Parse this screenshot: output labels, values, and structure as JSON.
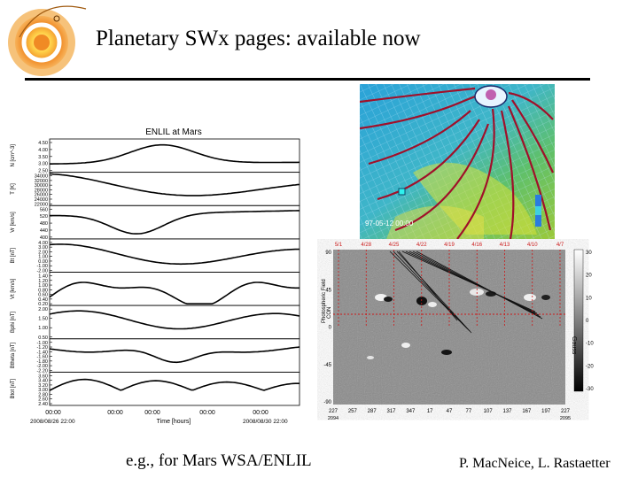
{
  "slide": {
    "title": "Planetary SWx pages: available now",
    "caption_left": "e.g., for Mars   WSA/ENLIL",
    "caption_right": "P. MacNeice, L. Rastaetter"
  },
  "colors": {
    "sun_orange": "#f08a24",
    "sun_yellow": "#ffd24a",
    "field_line": "#a0102a",
    "grid_red": "#cc1a1a"
  },
  "enlil_plot": {
    "title": "ENLIL at Mars",
    "xlabel": "Time [hours]",
    "x_ticks": [
      "00:00",
      "00:00",
      "00:00",
      "00:00",
      "00:00"
    ],
    "x_dates": [
      "2008/08/26 22:00",
      "2008/08/30 22:00"
    ],
    "panels": [
      {
        "ylabel": "N [cm^-3]",
        "ticks": [
          "4.50",
          "4.00",
          "3.50",
          "3.00",
          "2.50"
        ]
      },
      {
        "ylabel": "T [K]",
        "ticks": [
          "34000",
          "32000",
          "30000",
          "28000",
          "26000",
          "24000",
          "22000"
        ]
      },
      {
        "ylabel": "Vr [km/s]",
        "ticks": [
          "560",
          "520",
          "480",
          "440",
          "400"
        ]
      },
      {
        "ylabel": "Bt [nT]",
        "ticks": [
          "4.00",
          "3.00",
          "2.00",
          "1.00",
          "0.00",
          "-1.00",
          "-2.00"
        ]
      },
      {
        "ylabel": "Vt [km/s]",
        "ticks": [
          "1.40",
          "1.20",
          "1.00",
          "0.80",
          "0.60",
          "0.40",
          "0.20"
        ]
      },
      {
        "ylabel": "Bphi [nT]",
        "ticks": [
          "2.00",
          "1.50",
          "1.00",
          "0.50"
        ]
      },
      {
        "ylabel": "Btheta [nT]",
        "ticks": [
          "-1.00",
          "-1.20",
          "-1.40",
          "-1.60",
          "-1.80",
          "-2.00",
          "-2.20"
        ]
      },
      {
        "ylabel": "Btot [nT]",
        "ticks": [
          "3.60",
          "3.40",
          "3.20",
          "3.00",
          "2.80",
          "2.60",
          "2.40"
        ]
      }
    ]
  },
  "sim_image": {
    "timestamp": "97-05-12 00:00"
  },
  "synoptic_map": {
    "top_dates": [
      "5/1",
      "4/28",
      "4/25",
      "4/22",
      "4/19",
      "4/16",
      "4/13",
      "4/10",
      "4/7"
    ],
    "bottom_ticks": [
      "227",
      "257",
      "287",
      "317",
      "347",
      "17",
      "47",
      "77",
      "107",
      "137",
      "167",
      "197",
      "227"
    ],
    "bottom_rot": [
      "2094",
      "2095"
    ],
    "y_ticks": [
      "90",
      "45",
      "0",
      "-45",
      "-90"
    ],
    "side_label": "Photospheric Field",
    "side_sub": "CON",
    "colorbar_ticks": [
      "30",
      "20",
      "10",
      "0",
      "-10",
      "-20",
      "-30"
    ],
    "colorbar_unit": "Gauss"
  }
}
